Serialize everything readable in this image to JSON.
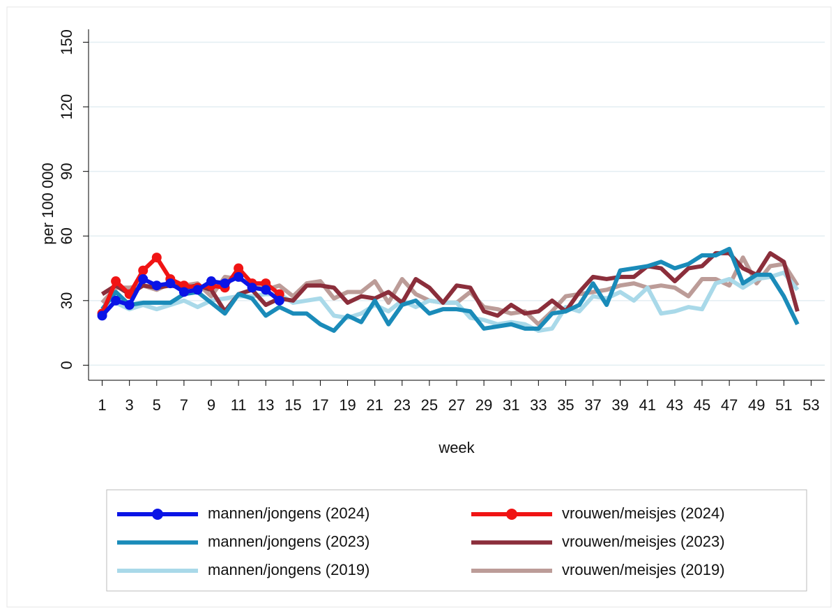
{
  "chart_data": {
    "type": "line",
    "y_label": "per 100 000",
    "x_label": "week",
    "xlim": [
      0,
      54
    ],
    "ylim": [
      -7,
      156
    ],
    "xticks": [
      1,
      3,
      5,
      7,
      9,
      11,
      13,
      15,
      17,
      19,
      21,
      23,
      25,
      27,
      29,
      31,
      33,
      35,
      37,
      39,
      41,
      43,
      45,
      47,
      49,
      51,
      53
    ],
    "yticks": [
      0,
      30,
      60,
      90,
      120,
      150
    ],
    "grid": true,
    "series": [
      {
        "name": "mannen/jongens (2024)",
        "color": "#0a14e6",
        "marker": true,
        "x": [
          1,
          2,
          3,
          4,
          5,
          6,
          7,
          8,
          9,
          10,
          11,
          12,
          13,
          14
        ],
        "values": [
          23,
          30,
          28,
          40,
          37,
          38,
          34,
          35,
          39,
          38,
          41,
          36,
          35,
          30
        ]
      },
      {
        "name": "vrouwen/meisjes (2024)",
        "color": "#f01414",
        "marker": true,
        "x": [
          1,
          2,
          3,
          4,
          5,
          6,
          7,
          8,
          9,
          10,
          11,
          12,
          13,
          14
        ],
        "values": [
          24,
          39,
          33,
          44,
          50,
          40,
          37,
          36,
          37,
          36,
          45,
          38,
          38,
          33
        ]
      },
      {
        "name": "mannen/jongens (2023)",
        "color": "#1a8bb9",
        "marker": false,
        "x": [
          1,
          2,
          3,
          4,
          5,
          6,
          7,
          8,
          9,
          10,
          11,
          12,
          13,
          14,
          15,
          16,
          17,
          18,
          19,
          20,
          21,
          22,
          23,
          24,
          25,
          26,
          27,
          28,
          29,
          30,
          31,
          32,
          33,
          34,
          35,
          36,
          37,
          38,
          39,
          40,
          41,
          42,
          43,
          44,
          45,
          46,
          47,
          48,
          49,
          50,
          51,
          52
        ],
        "values": [
          26,
          34,
          28,
          29,
          29,
          29,
          33,
          34,
          29,
          24,
          33,
          31,
          23,
          27,
          24,
          24,
          19,
          16,
          23,
          20,
          30,
          19,
          28,
          30,
          24,
          26,
          26,
          25,
          17,
          18,
          19,
          17,
          17,
          24,
          25,
          28,
          38,
          28,
          44,
          45,
          46,
          48,
          45,
          47,
          51,
          51,
          54,
          38,
          42,
          42,
          32,
          19
        ]
      },
      {
        "name": "vrouwen/meisjes (2023)",
        "color": "#8b2e3b",
        "marker": false,
        "x": [
          1,
          2,
          3,
          4,
          5,
          6,
          7,
          8,
          9,
          10,
          11,
          12,
          13,
          14,
          15,
          16,
          17,
          18,
          19,
          20,
          21,
          22,
          23,
          24,
          25,
          26,
          27,
          28,
          29,
          30,
          31,
          32,
          33,
          34,
          35,
          36,
          37,
          38,
          39,
          40,
          41,
          42,
          43,
          44,
          45,
          46,
          47,
          48,
          49,
          50,
          51,
          52
        ],
        "values": [
          33,
          37,
          33,
          37,
          36,
          37,
          36,
          37,
          35,
          25,
          33,
          35,
          28,
          31,
          30,
          37,
          37,
          36,
          29,
          32,
          31,
          34,
          29,
          40,
          36,
          29,
          37,
          36,
          25,
          23,
          28,
          24,
          25,
          30,
          25,
          34,
          41,
          40,
          41,
          41,
          46,
          45,
          39,
          45,
          46,
          52,
          52,
          45,
          42,
          52,
          48,
          25
        ]
      },
      {
        "name": "mannen/jongens (2019)",
        "color": "#a9d9e9",
        "marker": false,
        "x": [
          1,
          2,
          3,
          4,
          5,
          6,
          7,
          8,
          9,
          10,
          11,
          12,
          13,
          14,
          15,
          16,
          17,
          18,
          19,
          20,
          21,
          22,
          23,
          24,
          25,
          26,
          27,
          28,
          29,
          30,
          31,
          32,
          33,
          34,
          35,
          36,
          37,
          38,
          39,
          40,
          41,
          42,
          43,
          44,
          45,
          46,
          47,
          48,
          49,
          50,
          51,
          52
        ],
        "values": [
          26,
          29,
          26,
          28,
          26,
          28,
          30,
          27,
          30,
          31,
          32,
          32,
          33,
          33,
          29,
          30,
          31,
          23,
          22,
          24,
          28,
          25,
          30,
          27,
          30,
          29,
          29,
          22,
          21,
          19,
          20,
          19,
          16,
          17,
          27,
          25,
          32,
          31,
          34,
          30,
          36,
          24,
          25,
          27,
          26,
          38,
          40,
          36,
          40,
          41,
          43,
          35
        ]
      },
      {
        "name": "vrouwen/meisjes (2019)",
        "color": "#bc9c98",
        "marker": false,
        "x": [
          1,
          2,
          3,
          4,
          5,
          6,
          7,
          8,
          9,
          10,
          11,
          12,
          13,
          14,
          15,
          16,
          17,
          18,
          19,
          20,
          21,
          22,
          23,
          24,
          25,
          26,
          27,
          28,
          29,
          30,
          31,
          32,
          33,
          34,
          35,
          36,
          37,
          38,
          39,
          40,
          41,
          42,
          43,
          44,
          45,
          46,
          47,
          48,
          49,
          50,
          51,
          52
        ],
        "values": [
          29,
          36,
          36,
          37,
          35,
          38,
          37,
          38,
          32,
          41,
          40,
          38,
          35,
          37,
          32,
          38,
          39,
          31,
          34,
          34,
          39,
          29,
          40,
          33,
          30,
          29,
          29,
          34,
          27,
          26,
          24,
          25,
          19,
          25,
          32,
          33,
          34,
          35,
          37,
          38,
          36,
          37,
          36,
          32,
          40,
          40,
          37,
          50,
          38,
          46,
          47,
          37
        ]
      }
    ]
  }
}
